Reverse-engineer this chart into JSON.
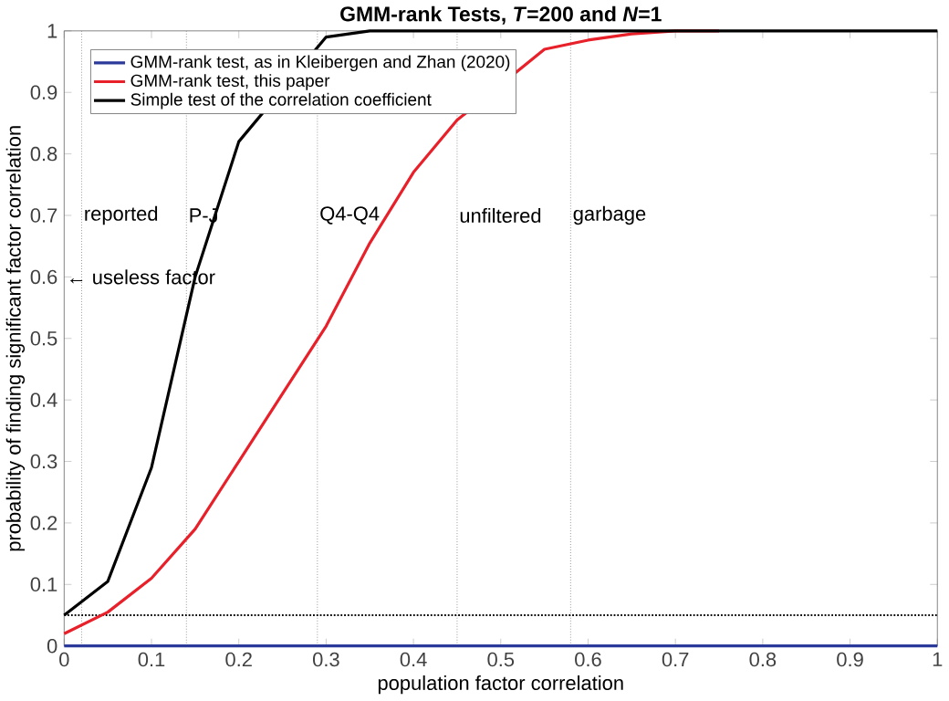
{
  "chart_data": {
    "type": "line",
    "title": "GMM-rank Tests, *T*=200 and *N*=1",
    "xlabel": "population factor correlation",
    "ylabel": "probability of finding significant factor correlation",
    "x": [
      0,
      0.05,
      0.1,
      0.15,
      0.2,
      0.25,
      0.3,
      0.35,
      0.4,
      0.45,
      0.5,
      0.55,
      0.6,
      0.65,
      0.7,
      0.75,
      0.8,
      0.85,
      0.9,
      0.95,
      1
    ],
    "series": [
      {
        "name": "GMM-rank test, as in Kleibergen and Zhan (2020)",
        "color": "#2b3a9a",
        "values": [
          0,
          0,
          0,
          0,
          0,
          0,
          0,
          0,
          0,
          0,
          0,
          0,
          0,
          0,
          0,
          0,
          0,
          0,
          0,
          0,
          0
        ]
      },
      {
        "name": "GMM-rank test, this paper",
        "color": "#e8202a",
        "values": [
          0.02,
          0.055,
          0.11,
          0.19,
          0.3,
          0.41,
          0.52,
          0.655,
          0.77,
          0.855,
          null,
          0.97,
          0.985,
          0.995,
          1,
          1,
          null,
          null,
          null,
          null,
          null
        ]
      },
      {
        "name": "Simple test of the correlation coefficient",
        "color": "#000000",
        "values": [
          0.05,
          0.105,
          0.29,
          0.6,
          0.82,
          null,
          0.99,
          1,
          1,
          1,
          1,
          1,
          1,
          1,
          1,
          1,
          1,
          1,
          1,
          1,
          1
        ]
      }
    ],
    "xlim": [
      0,
      1
    ],
    "ylim": [
      0,
      1
    ],
    "xticks": [
      0,
      0.1,
      0.2,
      0.3,
      0.4,
      0.5,
      0.6,
      0.7,
      0.8,
      0.9,
      1
    ],
    "yticks": [
      0,
      0.1,
      0.2,
      0.3,
      0.4,
      0.5,
      0.6,
      0.7,
      0.8,
      0.9,
      1
    ],
    "ref_lines": [
      {
        "axis": "x",
        "value": 0.02,
        "label": "reported",
        "color": "#999999",
        "line_style": "dotted"
      },
      {
        "axis": "x",
        "value": 0.14,
        "label": "P-J",
        "color": "#999999",
        "line_style": "dotted"
      },
      {
        "axis": "x",
        "value": 0.29,
        "label": "Q4-Q4",
        "color": "#999999",
        "line_style": "dotted"
      },
      {
        "axis": "x",
        "value": 0.45,
        "label": "unfiltered",
        "color": "#999999",
        "line_style": "dotted"
      },
      {
        "axis": "x",
        "value": 0.58,
        "label": "garbage",
        "color": "#999999",
        "line_style": "dotted"
      },
      {
        "axis": "y",
        "value": 0.05,
        "color": "#000000",
        "line_style": "dotted"
      }
    ],
    "annotations": [
      "← useless factor"
    ],
    "grid": false,
    "legend": "top left",
    "marker": "none",
    "line_style": "solid"
  }
}
